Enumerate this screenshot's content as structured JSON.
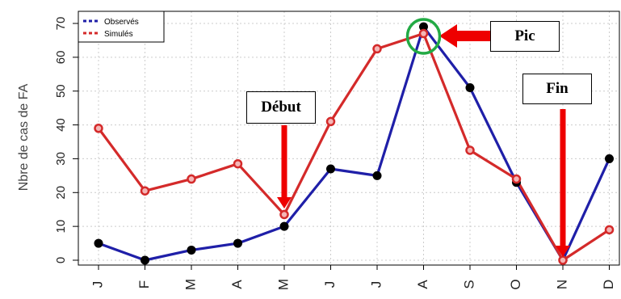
{
  "chart_data": {
    "type": "line",
    "categories": [
      "J",
      "F",
      "M",
      "A",
      "M",
      "J",
      "J",
      "A",
      "S",
      "O",
      "N",
      "D"
    ],
    "series": [
      {
        "name": "Observés",
        "values": [
          5,
          0,
          3,
          5,
          10,
          27,
          25,
          69,
          51,
          23,
          0,
          30
        ],
        "color": "#1f1fa8",
        "point_color": "#000000"
      },
      {
        "name": "Simulés",
        "values": [
          39,
          20.5,
          24,
          28.5,
          13.5,
          41,
          62.5,
          67,
          32.5,
          24,
          0,
          9
        ],
        "color": "#d42a2a",
        "point_color": "#d42a2a"
      }
    ],
    "ylabel": "Nbre de cas de FA",
    "xlabel": "",
    "ylim": [
      0,
      70
    ],
    "yticks": [
      0,
      10,
      20,
      30,
      40,
      50,
      60,
      70
    ],
    "grid": true,
    "legend_position": "top-left",
    "annotations": {
      "debut": {
        "label": "Début",
        "month_index": 4
      },
      "pic": {
        "label": "Pic",
        "month_index": 7
      },
      "fin": {
        "label": "Fin",
        "month_index": 10
      }
    },
    "colors": {
      "arrow": "#ee0000",
      "circle": "#22aa44",
      "grid": "#cccccc"
    }
  }
}
